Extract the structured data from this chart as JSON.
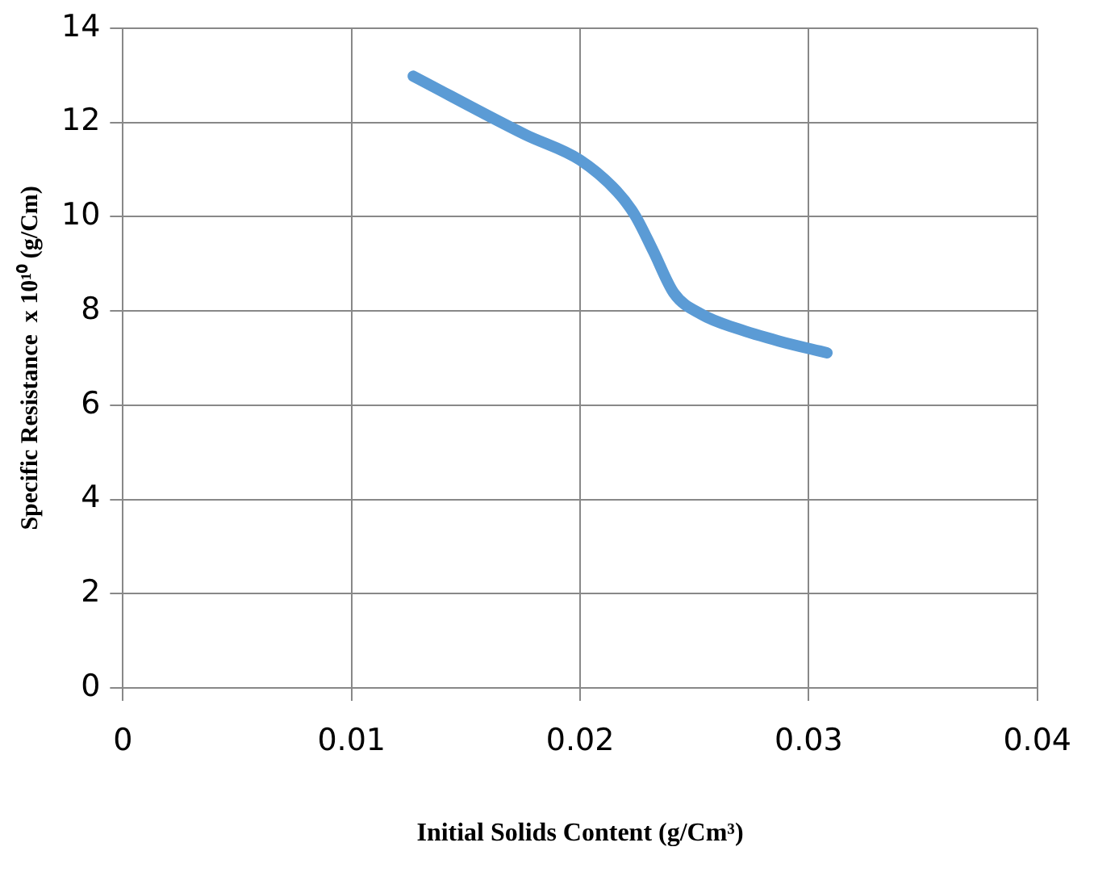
{
  "chart_data": {
    "type": "line",
    "xlabel": "Initial Solids Content (g/Cm³)",
    "ylabel": "Specific Resistance  x 10¹⁰ (g/Cm)",
    "series": [
      {
        "color": "#5b9bd5",
        "x": [
          0.0127,
          0.0176,
          0.02,
          0.0216,
          0.0224,
          0.0232,
          0.0241,
          0.0253,
          0.0269,
          0.0287,
          0.0308
        ],
        "values": [
          12.98,
          11.74,
          11.2,
          10.54,
          10.03,
          9.27,
          8.38,
          7.93,
          7.62,
          7.36,
          7.11
        ]
      }
    ],
    "xlim": [
      0,
      0.04
    ],
    "xticks": [
      0,
      0.01,
      0.02,
      0.03,
      0.04
    ],
    "ylim": [
      0,
      14
    ],
    "yticks": [
      0,
      2,
      4,
      6,
      8,
      10,
      12,
      14
    ],
    "grid": true,
    "marker": "none",
    "line_style": "solid",
    "legend": false
  }
}
